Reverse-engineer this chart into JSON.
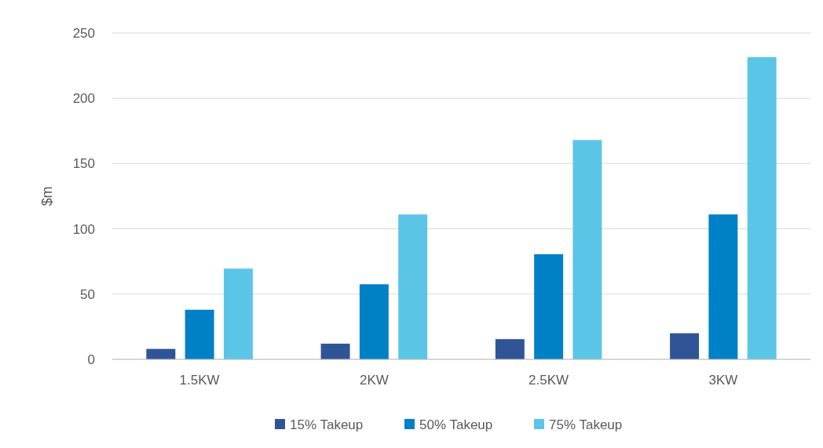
{
  "chart_data": {
    "type": "bar",
    "ylabel": "$m",
    "categories": [
      "1.5KW",
      "2KW",
      "2.5KW",
      "3KW"
    ],
    "series": [
      {
        "name": "15% Takeup",
        "color": "#2f5597",
        "values": [
          8,
          12,
          15.5,
          20
        ]
      },
      {
        "name": "50% Takeup",
        "color": "#0080c6",
        "values": [
          38,
          57.5,
          80.5,
          111
        ]
      },
      {
        "name": "75% Takeup",
        "color": "#5bc5e8",
        "values": [
          69.5,
          111,
          168,
          231.5
        ]
      }
    ],
    "ylim": [
      0,
      250
    ],
    "yticks": [
      0,
      50,
      100,
      150,
      200,
      250
    ],
    "grid": "y",
    "legend": "bottom"
  }
}
